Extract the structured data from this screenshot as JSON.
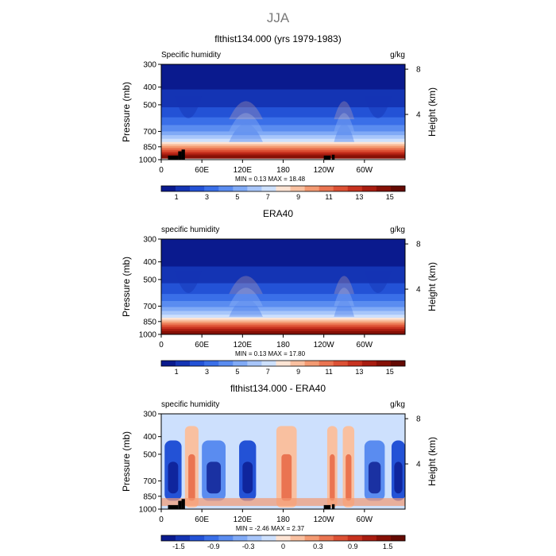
{
  "page_title": "JJA",
  "chart_data": [
    {
      "type": "heatmap",
      "title": "flthist134.000 (yrs 1979-1983)",
      "left_label": "Specific humidity",
      "right_label": "g/kg",
      "ylabel": "Pressure (mb)",
      "ylabel_right": "Height (km)",
      "x_ticks": [
        "0",
        "60E",
        "120E",
        "180",
        "120W",
        "60W"
      ],
      "x_tick_values": [
        0,
        60,
        120,
        180,
        240,
        300
      ],
      "xlim": [
        0,
        360
      ],
      "y_ticks": [
        "300",
        "400",
        "500",
        "700",
        "850",
        "1000"
      ],
      "y_tick_values": [
        300,
        400,
        500,
        700,
        850,
        1000
      ],
      "ylim": [
        1000,
        300
      ],
      "y_scale": "log",
      "right_ticks": [
        "8",
        "4"
      ],
      "right_tick_values_km": [
        8,
        4
      ],
      "stats": "MIN =   0.13   MAX =  18.48",
      "min": 0.13,
      "max": 18.48,
      "colorbar_labels": [
        "1",
        "3",
        "5",
        "7",
        "9",
        "11",
        "13",
        "15"
      ],
      "colorbar_levels": [
        0,
        1,
        2,
        3,
        4,
        5,
        6,
        7,
        8,
        9,
        10,
        11,
        12,
        13,
        14,
        15,
        16
      ],
      "colormap": "diverging blue-white-red",
      "profile_pressure_mb": [
        300,
        400,
        500,
        600,
        700,
        800,
        850,
        900,
        950,
        1000
      ],
      "profile_value_gkg": [
        0.3,
        0.9,
        1.8,
        3.2,
        5.0,
        8.0,
        10.5,
        12.8,
        15.2,
        16.5
      ],
      "moist_regions_lon": [
        [
          100,
          150
        ],
        [
          255,
          285
        ]
      ],
      "dry_regions_lon": [
        [
          20,
          60
        ],
        [
          300,
          340
        ]
      ],
      "topography_mask": true
    },
    {
      "type": "heatmap",
      "title": "ERA40",
      "left_label": "specific humidity",
      "right_label": "g/kg",
      "ylabel": "Pressure (mb)",
      "ylabel_right": "Height (km)",
      "x_ticks": [
        "0",
        "60E",
        "120E",
        "180",
        "120W",
        "60W"
      ],
      "x_tick_values": [
        0,
        60,
        120,
        180,
        240,
        300
      ],
      "xlim": [
        0,
        360
      ],
      "y_ticks": [
        "300",
        "400",
        "500",
        "700",
        "850",
        "1000"
      ],
      "y_tick_values": [
        300,
        400,
        500,
        700,
        850,
        1000
      ],
      "ylim": [
        1000,
        300
      ],
      "y_scale": "log",
      "right_ticks": [
        "8",
        "4"
      ],
      "right_tick_values_km": [
        8,
        4
      ],
      "stats": "MIN =   0.13   MAX =  17.80",
      "min": 0.13,
      "max": 17.8,
      "colorbar_labels": [
        "1",
        "3",
        "5",
        "7",
        "9",
        "11",
        "13",
        "15"
      ],
      "colorbar_levels": [
        0,
        1,
        2,
        3,
        4,
        5,
        6,
        7,
        8,
        9,
        10,
        11,
        12,
        13,
        14,
        15,
        16
      ],
      "colormap": "diverging blue-white-red",
      "profile_pressure_mb": [
        300,
        400,
        500,
        600,
        700,
        800,
        850,
        900,
        950,
        1000
      ],
      "profile_value_gkg": [
        0.3,
        0.8,
        1.7,
        3.0,
        4.8,
        7.6,
        10.0,
        12.5,
        14.8,
        16.0
      ],
      "moist_regions_lon": [
        [
          100,
          150
        ],
        [
          255,
          285
        ]
      ],
      "dry_regions_lon": [
        [
          20,
          60
        ],
        [
          300,
          340
        ]
      ],
      "topography_mask": false
    },
    {
      "type": "heatmap",
      "title": "flthist134.000 - ERA40",
      "left_label": "specific humidity",
      "right_label": "g/kg",
      "ylabel": "Pressure (mb)",
      "ylabel_right": "Height (km)",
      "x_ticks": [
        "0",
        "60E",
        "120E",
        "180",
        "120W",
        "60W"
      ],
      "x_tick_values": [
        0,
        60,
        120,
        180,
        240,
        300
      ],
      "xlim": [
        0,
        360
      ],
      "y_ticks": [
        "300",
        "400",
        "500",
        "700",
        "850",
        "1000"
      ],
      "y_tick_values": [
        300,
        400,
        500,
        700,
        850,
        1000
      ],
      "ylim": [
        1000,
        300
      ],
      "y_scale": "log",
      "right_ticks": [
        "8",
        "4"
      ],
      "right_tick_values_km": [
        8,
        4
      ],
      "stats": "MIN =  -2.46   MAX =   2.37",
      "min": -2.46,
      "max": 2.37,
      "colorbar_labels": [
        "-1.5",
        "-0.9",
        "-0.3",
        "0",
        "0.3",
        "0.9",
        "1.5"
      ],
      "colorbar_levels": [
        -2.1,
        -1.8,
        -1.5,
        -1.2,
        -0.9,
        -0.6,
        -0.3,
        -0.1,
        0,
        0.1,
        0.3,
        0.6,
        0.9,
        1.2,
        1.5,
        1.8,
        2.1
      ],
      "colormap": "diverging blue-white-red",
      "dry_bias_lon": [
        [
          5,
          30
        ],
        [
          60,
          95
        ],
        [
          115,
          140
        ],
        [
          300,
          330
        ],
        [
          340,
          360
        ]
      ],
      "moist_bias_lon": [
        [
          35,
          55
        ],
        [
          170,
          200
        ],
        [
          245,
          260
        ],
        [
          268,
          285
        ]
      ],
      "topography_mask": true
    }
  ],
  "colors": {
    "palette": [
      "#0a1a8e",
      "#1434b4",
      "#2352d6",
      "#3a6fe8",
      "#5a8cf0",
      "#80aaf6",
      "#a8c6fa",
      "#cde0fd",
      "#fde4d4",
      "#f9c0a0",
      "#f39a72",
      "#ea7451",
      "#dc5034",
      "#c7321f",
      "#a81c10",
      "#861006",
      "#640a03"
    ]
  }
}
